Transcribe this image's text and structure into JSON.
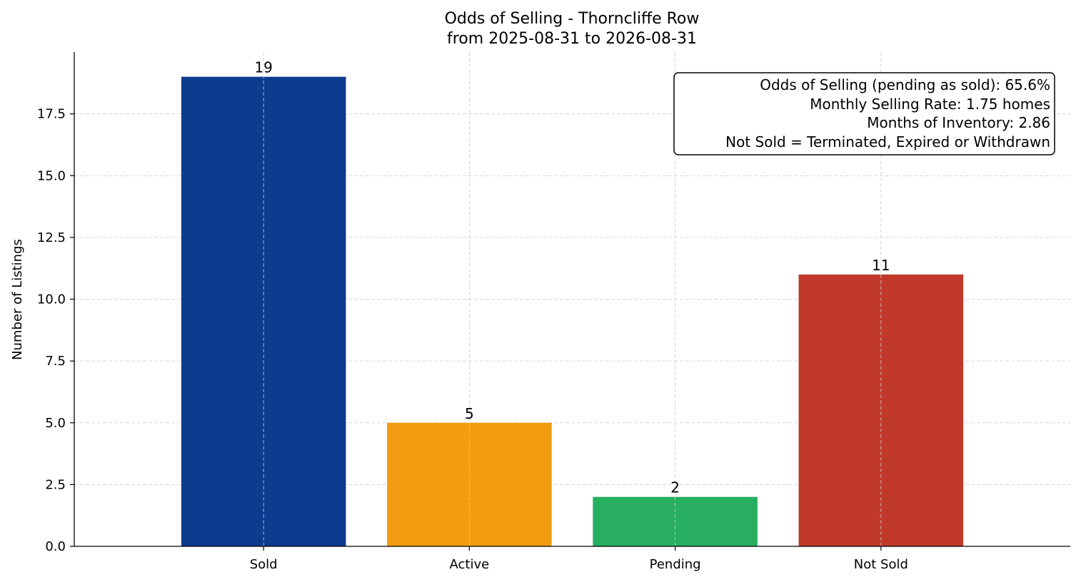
{
  "chart_data": {
    "type": "bar",
    "title": [
      "Odds of Selling - Thorncliffe Row",
      "from 2025-08-31 to 2026-08-31"
    ],
    "xlabel": "",
    "ylabel": "Number of Listings",
    "categories": [
      "Sold",
      "Active",
      "Pending",
      "Not Sold"
    ],
    "values": [
      19,
      5,
      2,
      11
    ],
    "data_labels": [
      "19",
      "5",
      "2",
      "11"
    ],
    "colors": [
      "#0d3b8e",
      "#f39c12",
      "#27ae60",
      "#c0392b"
    ],
    "ylim": [
      0,
      20
    ],
    "yticks": [
      0.0,
      2.5,
      5.0,
      7.5,
      10.0,
      12.5,
      15.0,
      17.5
    ],
    "ytick_labels": [
      "0.0",
      "2.5",
      "5.0",
      "7.5",
      "10.0",
      "12.5",
      "15.0",
      "17.5"
    ],
    "grid": true,
    "annotation_box": {
      "placement": "top-right",
      "lines": [
        "Odds of Selling (pending as sold): 65.6%",
        "Monthly Selling Rate: 1.75 homes",
        "Months of Inventory: 2.86",
        "Not Sold = Terminated, Expired or Withdrawn"
      ]
    }
  }
}
